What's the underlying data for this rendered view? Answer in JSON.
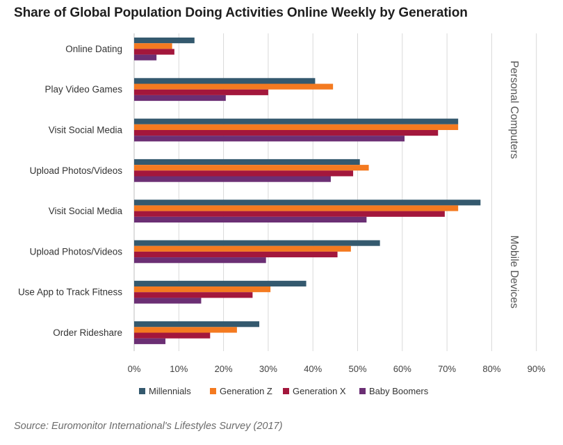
{
  "chart_data": {
    "type": "bar",
    "orientation": "horizontal",
    "title": "Share of Global Population Doing Activities Online Weekly by Generation",
    "categories": [
      "Online Dating",
      "Play Video Games",
      "Visit Social Media",
      "Upload Photos/Videos",
      "Visit Social Media",
      "Upload Photos/Videos",
      "Use App to Track Fitness",
      "Order Rideshare"
    ],
    "groups": [
      {
        "label": "Personal Computers",
        "categories": [
          0,
          1,
          2,
          3
        ]
      },
      {
        "label": "Mobile Devices",
        "categories": [
          4,
          5,
          6,
          7
        ]
      }
    ],
    "series": [
      {
        "name": "Millennials",
        "color": "#34596e",
        "values": [
          13.5,
          40.5,
          72.5,
          50.5,
          77.5,
          55,
          38.5,
          28
        ]
      },
      {
        "name": "Generation Z",
        "color": "#f47a20",
        "values": [
          8.5,
          44.5,
          72.5,
          52.5,
          72.5,
          48.5,
          30.5,
          23
        ]
      },
      {
        "name": "Generation X",
        "color": "#a3173c",
        "values": [
          9,
          30,
          68,
          49,
          69.5,
          45.5,
          26.5,
          17
        ]
      },
      {
        "name": "Baby Boomers",
        "color": "#6b2f74",
        "values": [
          5,
          20.5,
          60.5,
          44,
          52,
          29.5,
          15,
          7
        ]
      }
    ],
    "xlim": [
      0,
      90
    ],
    "xticks": [
      "0%",
      "10%",
      "20%",
      "30%",
      "40%",
      "50%",
      "60%",
      "70%",
      "80%",
      "90%"
    ],
    "grid": true,
    "legend_position": "bottom"
  },
  "source": "Source: Euromonitor International's Lifestyles Survey (2017)"
}
